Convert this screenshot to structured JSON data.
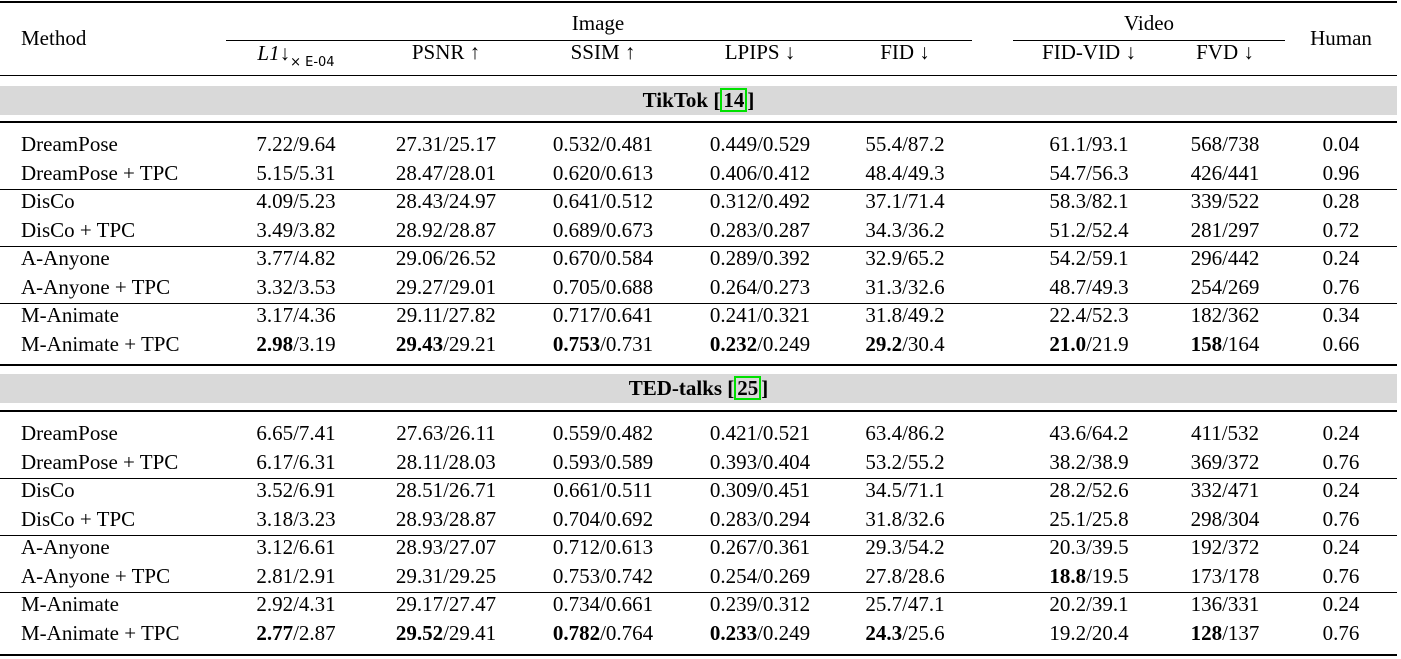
{
  "header": {
    "method": "Method",
    "group_image": "Image",
    "group_video": "Video",
    "human": "Human",
    "l1_main": "L1↓",
    "l1_sub": "× E-04",
    "cols": [
      "PSNR ↑",
      "SSIM ↑",
      "LPIPS ↓",
      "FID ↓",
      "FID-VID ↓",
      "FVD ↓"
    ]
  },
  "sections": [
    {
      "title": "TikTok",
      "cite": "14",
      "rows": [
        {
          "method": "DreamPose",
          "cells": [
            [
              "",
              "7.22/9.64"
            ],
            [
              "",
              "27.31/25.17"
            ],
            [
              "",
              "0.532/0.481"
            ],
            [
              "",
              "0.449/0.529"
            ],
            [
              "",
              "55.4/87.2"
            ],
            [
              "",
              "61.1/93.1"
            ],
            [
              "",
              "568/738"
            ],
            [
              "",
              "0.04"
            ]
          ]
        },
        {
          "method": "DreamPose + TPC",
          "cells": [
            [
              "",
              "5.15/5.31"
            ],
            [
              "",
              "28.47/28.01"
            ],
            [
              "",
              "0.620/0.613"
            ],
            [
              "",
              "0.406/0.412"
            ],
            [
              "",
              "48.4/49.3"
            ],
            [
              "",
              "54.7/56.3"
            ],
            [
              "",
              "426/441"
            ],
            [
              "",
              "0.96"
            ]
          ]
        },
        {
          "method": "DisCo",
          "cells": [
            [
              "",
              "4.09/5.23"
            ],
            [
              "",
              "28.43/24.97"
            ],
            [
              "",
              "0.641/0.512"
            ],
            [
              "",
              "0.312/0.492"
            ],
            [
              "",
              "37.1/71.4"
            ],
            [
              "",
              "58.3/82.1"
            ],
            [
              "",
              "339/522"
            ],
            [
              "",
              "0.28"
            ]
          ]
        },
        {
          "method": "DisCo + TPC",
          "cells": [
            [
              "",
              "3.49/3.82"
            ],
            [
              "",
              "28.92/28.87"
            ],
            [
              "",
              "0.689/0.673"
            ],
            [
              "",
              "0.283/0.287"
            ],
            [
              "",
              "34.3/36.2"
            ],
            [
              "",
              "51.2/52.4"
            ],
            [
              "",
              "281/297"
            ],
            [
              "",
              "0.72"
            ]
          ]
        },
        {
          "method": "A-Anyone",
          "cells": [
            [
              "",
              "3.77/4.82"
            ],
            [
              "",
              "29.06/26.52"
            ],
            [
              "",
              "0.670/0.584"
            ],
            [
              "",
              "0.289/0.392"
            ],
            [
              "",
              "32.9/65.2"
            ],
            [
              "",
              "54.2/59.1"
            ],
            [
              "",
              "296/442"
            ],
            [
              "",
              "0.24"
            ]
          ]
        },
        {
          "method": "A-Anyone + TPC",
          "cells": [
            [
              "",
              "3.32/3.53"
            ],
            [
              "",
              "29.27/29.01"
            ],
            [
              "",
              "0.705/0.688"
            ],
            [
              "",
              "0.264/0.273"
            ],
            [
              "",
              "31.3/32.6"
            ],
            [
              "",
              "48.7/49.3"
            ],
            [
              "",
              "254/269"
            ],
            [
              "",
              "0.76"
            ]
          ]
        },
        {
          "method": "M-Animate",
          "cells": [
            [
              "",
              "3.17/4.36"
            ],
            [
              "",
              "29.11/27.82"
            ],
            [
              "",
              "0.717/0.641"
            ],
            [
              "",
              "0.241/0.321"
            ],
            [
              "",
              "31.8/49.2"
            ],
            [
              "",
              "22.4/52.3"
            ],
            [
              "",
              "182/362"
            ],
            [
              "",
              "0.34"
            ]
          ]
        },
        {
          "method": "M-Animate + TPC",
          "cells": [
            [
              "2.98",
              "/3.19"
            ],
            [
              "29.43",
              "/29.21"
            ],
            [
              "0.753",
              "/0.731"
            ],
            [
              "0.232",
              "/0.249"
            ],
            [
              "29.2",
              "/30.4"
            ],
            [
              "21.0",
              "/21.9"
            ],
            [
              "158",
              "/164"
            ],
            [
              "",
              "0.66"
            ]
          ]
        }
      ]
    },
    {
      "title": "TED-talks",
      "cite": "25",
      "rows": [
        {
          "method": "DreamPose",
          "cells": [
            [
              "",
              "6.65/7.41"
            ],
            [
              "",
              "27.63/26.11"
            ],
            [
              "",
              "0.559/0.482"
            ],
            [
              "",
              "0.421/0.521"
            ],
            [
              "",
              "63.4/86.2"
            ],
            [
              "",
              "43.6/64.2"
            ],
            [
              "",
              "411/532"
            ],
            [
              "",
              "0.24"
            ]
          ]
        },
        {
          "method": "DreamPose + TPC",
          "cells": [
            [
              "",
              "6.17/6.31"
            ],
            [
              "",
              "28.11/28.03"
            ],
            [
              "",
              "0.593/0.589"
            ],
            [
              "",
              "0.393/0.404"
            ],
            [
              "",
              "53.2/55.2"
            ],
            [
              "",
              "38.2/38.9"
            ],
            [
              "",
              "369/372"
            ],
            [
              "",
              "0.76"
            ]
          ]
        },
        {
          "method": "DisCo",
          "cells": [
            [
              "",
              "3.52/6.91"
            ],
            [
              "",
              "28.51/26.71"
            ],
            [
              "",
              "0.661/0.511"
            ],
            [
              "",
              "0.309/0.451"
            ],
            [
              "",
              "34.5/71.1"
            ],
            [
              "",
              "28.2/52.6"
            ],
            [
              "",
              "332/471"
            ],
            [
              "",
              "0.24"
            ]
          ]
        },
        {
          "method": "DisCo + TPC",
          "cells": [
            [
              "",
              "3.18/3.23"
            ],
            [
              "",
              "28.93/28.87"
            ],
            [
              "",
              "0.704/0.692"
            ],
            [
              "",
              "0.283/0.294"
            ],
            [
              "",
              "31.8/32.6"
            ],
            [
              "",
              "25.1/25.8"
            ],
            [
              "",
              "298/304"
            ],
            [
              "",
              "0.76"
            ]
          ]
        },
        {
          "method": "A-Anyone",
          "cells": [
            [
              "",
              "3.12/6.61"
            ],
            [
              "",
              "28.93/27.07"
            ],
            [
              "",
              "0.712/0.613"
            ],
            [
              "",
              "0.267/0.361"
            ],
            [
              "",
              "29.3/54.2"
            ],
            [
              "",
              "20.3/39.5"
            ],
            [
              "",
              "192/372"
            ],
            [
              "",
              "0.24"
            ]
          ]
        },
        {
          "method": "A-Anyone + TPC",
          "cells": [
            [
              "",
              "2.81/2.91"
            ],
            [
              "",
              "29.31/29.25"
            ],
            [
              "",
              "0.753/0.742"
            ],
            [
              "",
              "0.254/0.269"
            ],
            [
              "",
              "27.8/28.6"
            ],
            [
              "18.8",
              "/19.5"
            ],
            [
              "",
              "173/178"
            ],
            [
              "",
              "0.76"
            ]
          ]
        },
        {
          "method": "M-Animate",
          "cells": [
            [
              "",
              "2.92/4.31"
            ],
            [
              "",
              "29.17/27.47"
            ],
            [
              "",
              "0.734/0.661"
            ],
            [
              "",
              "0.239/0.312"
            ],
            [
              "",
              "25.7/47.1"
            ],
            [
              "",
              "20.2/39.1"
            ],
            [
              "",
              "136/331"
            ],
            [
              "",
              "0.24"
            ]
          ]
        },
        {
          "method": "M-Animate + TPC",
          "cells": [
            [
              "2.77",
              "/2.87"
            ],
            [
              "29.52",
              "/29.41"
            ],
            [
              "0.782",
              "/0.764"
            ],
            [
              "0.233",
              "/0.249"
            ],
            [
              "24.3",
              "/25.6"
            ],
            [
              "",
              "19.2/20.4"
            ],
            [
              "128",
              "/137"
            ],
            [
              "",
              "0.76"
            ]
          ]
        }
      ]
    }
  ]
}
